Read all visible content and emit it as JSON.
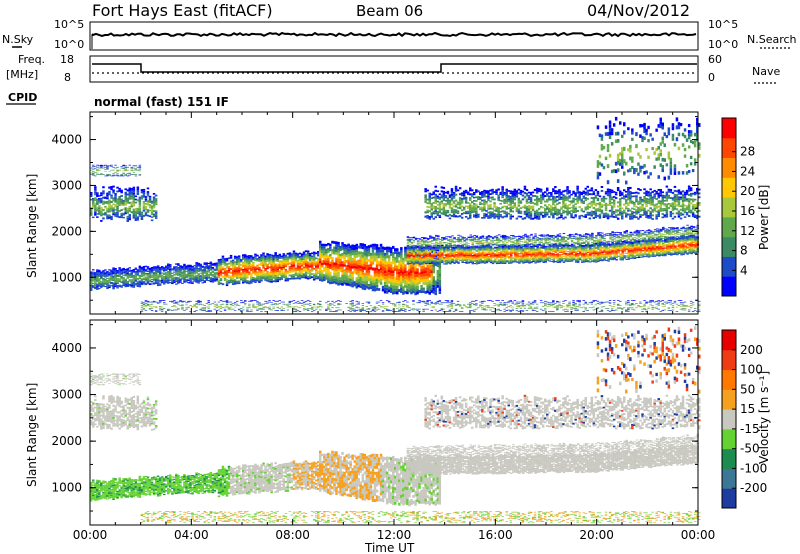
{
  "header": {
    "title": "Fort Hays East (fitACF)",
    "beam": "Beam 06",
    "date": "04/Nov/2012"
  },
  "status_panels": {
    "nsky_label": "N.Sky",
    "nsearch_label": "N.Search",
    "noise_ticks": [
      "10^5",
      "10^0"
    ],
    "freq_label_line1": "Freq.",
    "freq_label_line2": "[MHz]",
    "freq_ticks": [
      "18",
      "8"
    ],
    "nave_label": "Nave",
    "nave_ticks": [
      "60",
      "0"
    ],
    "cpid_label": "CPID",
    "cpid_text": "normal (fast) 151 IF"
  },
  "chart_data": [
    {
      "type": "heatmap",
      "name": "power",
      "ylabel": "Slant Range [km]",
      "xlabel": "",
      "yticks": [
        "1000",
        "2000",
        "3000",
        "4000"
      ],
      "ylim": [
        200,
        4600
      ],
      "xlim": [
        0,
        24
      ],
      "xticks": [
        "00:00",
        "04:00",
        "08:00",
        "12:00",
        "16:00",
        "20:00",
        "00:00"
      ],
      "colorbar": {
        "label": "Power [dB]",
        "tick_labels": [
          "4",
          "8",
          "12",
          "16",
          "20",
          "24",
          "28"
        ],
        "colors": [
          "#0000ff",
          "#1e4cc8",
          "#3c8a64",
          "#5fa84b",
          "#a8c83c",
          "#ffc800",
          "#ff8c00",
          "#ff4600",
          "#ff0000"
        ]
      }
    },
    {
      "type": "heatmap",
      "name": "velocity",
      "ylabel": "Slant Range [km]",
      "xlabel": "Time UT",
      "yticks": [
        "1000",
        "2000",
        "3000",
        "4000"
      ],
      "ylim": [
        200,
        4600
      ],
      "xlim": [
        0,
        24
      ],
      "xticks": [
        "00:00",
        "04:00",
        "08:00",
        "12:00",
        "16:00",
        "20:00",
        "00:00"
      ],
      "colorbar": {
        "label": "Velocity [m s⁻¹]",
        "tick_labels": [
          "200",
          "100",
          "50",
          "15",
          "-15",
          "-50",
          "-100",
          "-200"
        ],
        "colors": [
          "#1e3ca0",
          "#3c7896",
          "#1e8c50",
          "#64d232",
          "#c8c8c0",
          "#f5a01e",
          "#ff7800",
          "#f03c14",
          "#e60000"
        ]
      }
    }
  ],
  "colors": {
    "ground": "#c8c8c0",
    "axis": "#000000"
  }
}
